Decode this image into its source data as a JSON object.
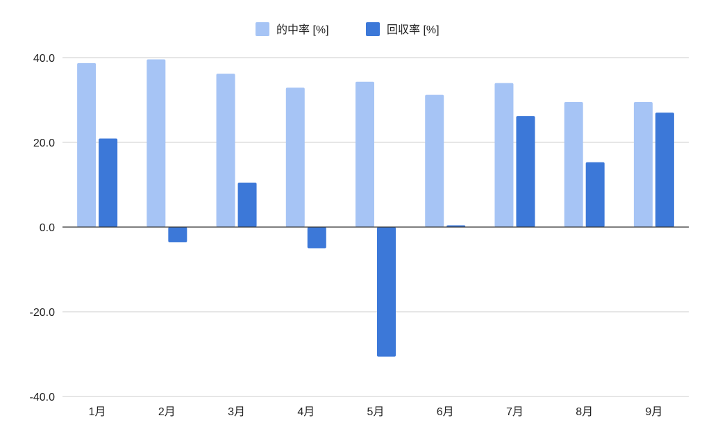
{
  "chart_data": {
    "type": "bar",
    "title": "",
    "xlabel": "",
    "ylabel": "",
    "categories": [
      "1月",
      "2月",
      "3月",
      "4月",
      "5月",
      "6月",
      "7月",
      "8月",
      "9月"
    ],
    "series": [
      {
        "name": "的中率 [%]",
        "color": "#a6c4f5",
        "values": [
          38.7,
          39.6,
          36.2,
          32.9,
          34.3,
          31.2,
          34.0,
          29.5,
          29.5
        ]
      },
      {
        "name": "回収率 [%]",
        "color": "#3c78d8",
        "values": [
          20.9,
          -3.6,
          10.5,
          -5.0,
          -30.6,
          0.4,
          26.2,
          15.3,
          27.0
        ]
      }
    ],
    "ylim": [
      -40,
      40
    ],
    "yticks": [
      40,
      20,
      0,
      -20,
      -40
    ],
    "ytick_labels": [
      "40.0",
      "20.0",
      "0.0",
      "-20.0",
      "-40.0"
    ],
    "grid": true,
    "legend_position": "top-center"
  }
}
